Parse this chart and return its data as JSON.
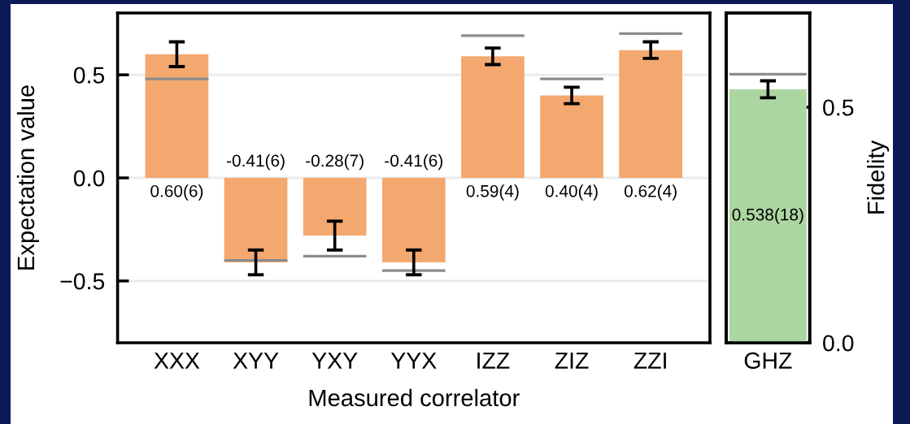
{
  "chart_data": [
    {
      "type": "bar",
      "xlabel": "Measured correlator",
      "ylabel": "Expectation value",
      "categories": [
        "XXX",
        "XYY",
        "YXY",
        "YYX",
        "IZZ",
        "ZIZ",
        "ZZI"
      ],
      "ylim": [
        -0.8,
        0.8
      ],
      "yticks": [
        {
          "value": -0.5,
          "label": "−0.5"
        },
        {
          "value": 0,
          "label": "0.0"
        },
        0.5
      ],
      "grid": "y",
      "series": [
        {
          "color": "#f3a86f",
          "values": [
            0.6,
            -0.41,
            -0.28,
            -0.41,
            0.59,
            0.4,
            0.62
          ],
          "errors": [
            0.06,
            0.06,
            0.07,
            0.06,
            0.04,
            0.04,
            0.04
          ],
          "value_labels": [
            "0.60(6)",
            "-0.41(6)",
            "-0.28(7)",
            "-0.41(6)",
            "0.59(4)",
            "0.40(4)",
            "0.62(4)"
          ]
        },
        {
          "color": "#8c8c8c",
          "base": [
            0.48,
            -0.4,
            -0.38,
            -0.45,
            0.69,
            0.48,
            0.7
          ],
          "values": [
            0,
            0,
            0,
            0,
            0,
            0,
            0
          ]
        }
      ]
    },
    {
      "type": "bar",
      "y2label": "Fidelity",
      "categories": [
        "GHZ"
      ],
      "y2lim": [
        0,
        0.7
      ],
      "y2ticks": [
        {
          "value": 0,
          "label": "0.0"
        },
        0.5
      ],
      "series": [
        {
          "axis": "y2",
          "color": "#acd6a1",
          "values": [
            0.538
          ],
          "errors": [
            0.018
          ],
          "value_labels": [
            "0.538(18)"
          ]
        },
        {
          "axis": "y2",
          "color": "#8c8c8c",
          "base": [
            0.57
          ],
          "values": [
            0
          ]
        }
      ]
    }
  ]
}
